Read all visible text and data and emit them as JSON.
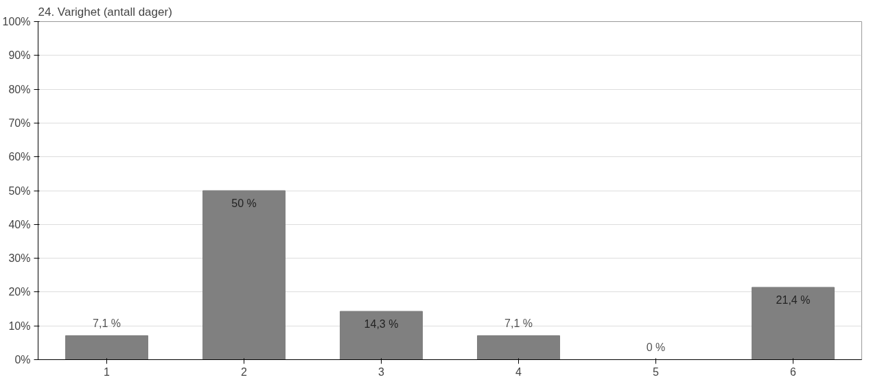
{
  "chart_data": {
    "type": "bar",
    "title": "24. Varighet (antall dager)",
    "categories": [
      "1",
      "2",
      "3",
      "4",
      "5",
      "6"
    ],
    "values": [
      7.1,
      50,
      14.3,
      7.1,
      0,
      21.4
    ],
    "value_labels": [
      "7,1 %",
      "50 %",
      "14,3 %",
      "7,1 %",
      "0 %",
      "21,4 %"
    ],
    "color": "#808080",
    "ylim": [
      0,
      100
    ],
    "yticks": [
      {
        "value": 0,
        "label": "0%"
      },
      {
        "value": 10,
        "label": "10%"
      },
      {
        "value": 20,
        "label": "20%"
      },
      {
        "value": 30,
        "label": "30%"
      },
      {
        "value": 40,
        "label": "40%"
      },
      {
        "value": 50,
        "label": "50%"
      },
      {
        "value": 60,
        "label": "60%"
      },
      {
        "value": 70,
        "label": "70%"
      },
      {
        "value": 80,
        "label": "80%"
      },
      {
        "value": 90,
        "label": "90%"
      },
      {
        "value": 100,
        "label": "100%"
      }
    ],
    "grid": "y"
  }
}
